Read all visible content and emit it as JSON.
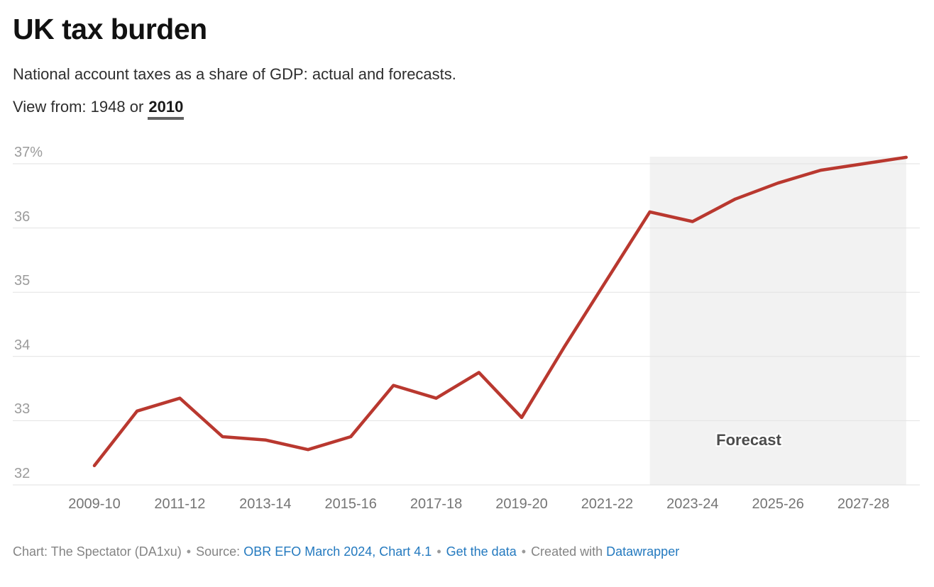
{
  "header": {
    "title": "UK tax burden",
    "description": "National account taxes as a share of GDP: actual and forecasts.",
    "view_from": {
      "label": "View from:",
      "option_1948": "1948",
      "separator": "or",
      "option_2010": "2010",
      "active": "2010"
    }
  },
  "chart_data": {
    "type": "line",
    "title": "UK tax burden",
    "subtitle": "National account taxes as a share of GDP: actual and forecasts.",
    "xlabel": "",
    "ylabel": "",
    "unit": "%",
    "grid": true,
    "legend": "none",
    "ylim": [
      32,
      37
    ],
    "yticks": [
      37,
      36,
      35,
      34,
      33,
      32
    ],
    "ytick_labels": [
      "37%",
      "36",
      "35",
      "34",
      "33",
      "32"
    ],
    "categories": [
      "2009-10",
      "2010-11",
      "2011-12",
      "2012-13",
      "2013-14",
      "2014-15",
      "2015-16",
      "2016-17",
      "2017-18",
      "2018-19",
      "2019-20",
      "2020-21",
      "2021-22",
      "2022-23",
      "2023-24",
      "2024-25",
      "2025-26",
      "2026-27",
      "2027-28",
      "2028-29"
    ],
    "values": [
      32.3,
      33.15,
      33.35,
      32.75,
      32.7,
      32.55,
      32.75,
      33.55,
      33.35,
      33.75,
      33.05,
      34.15,
      35.2,
      36.25,
      36.1,
      36.45,
      36.7,
      36.9,
      37.0,
      37.1
    ],
    "x_tick_labels": [
      "2009-10",
      "2011-12",
      "2013-14",
      "2015-16",
      "2017-18",
      "2019-20",
      "2021-22",
      "2023-24",
      "2025-26",
      "2027-28"
    ],
    "forecast": {
      "label": "Forecast",
      "start_category": "2022-23",
      "end_category": "2028-29"
    },
    "line_color": "#b9382f",
    "band_color": "#f2f2f2",
    "grid_color": "#e2e2e2"
  },
  "footer": {
    "credit": "Chart: The Spectator (DA1xu)",
    "separator": "•",
    "source_label": "Source:",
    "source_link": "OBR EFO March 2024, Chart 4.1",
    "get_data_link": "Get the data",
    "created_with": "Created with",
    "platform_link": "Datawrapper",
    "link_color": "#2379bf"
  }
}
